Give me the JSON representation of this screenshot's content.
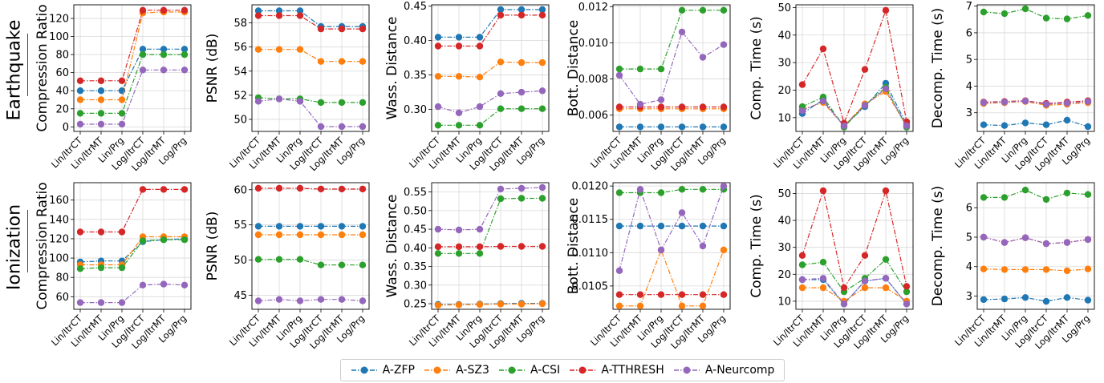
{
  "row_labels": [
    "Earthquake",
    "Ionization"
  ],
  "legend": [
    {
      "name": "A-ZFP",
      "color": "#1f77b4"
    },
    {
      "name": "A-SZ3",
      "color": "#ff7f0e"
    },
    {
      "name": "A-CSI",
      "color": "#2ca02c"
    },
    {
      "name": "A-TTHRESH",
      "color": "#d62728"
    },
    {
      "name": "A-Neurcomp",
      "color": "#9467bd"
    }
  ],
  "chart_data": [
    {
      "type": "line",
      "dataset": "Earthquake",
      "ylabel": "Compression Ratio",
      "categories": [
        "Lin/ItrCT",
        "Lin/ItrMT",
        "Lin/Prg",
        "Log/ItrCT",
        "Log/ItrMT",
        "Log/Prg"
      ],
      "ylim": [
        -5,
        135
      ],
      "yticks": [
        0,
        20,
        40,
        60,
        80,
        100,
        120
      ],
      "tick_decimals": 0,
      "grid": true,
      "series": [
        {
          "name": "A-ZFP",
          "values": [
            40,
            40,
            40,
            86,
            86,
            86
          ]
        },
        {
          "name": "A-SZ3",
          "values": [
            30,
            30,
            30,
            126,
            127,
            127
          ]
        },
        {
          "name": "A-CSI",
          "values": [
            15,
            15,
            15,
            80,
            80,
            80
          ]
        },
        {
          "name": "A-TTHRESH",
          "values": [
            51,
            51,
            51,
            129,
            129,
            129
          ]
        },
        {
          "name": "A-Neurcomp",
          "values": [
            3,
            3,
            3,
            63,
            63,
            63
          ]
        }
      ]
    },
    {
      "type": "line",
      "dataset": "Earthquake",
      "ylabel": "PSNR (dB)",
      "categories": [
        "Lin/ItrCT",
        "Lin/ItrMT",
        "Lin/Prg",
        "Log/ItrCT",
        "Log/ItrMT",
        "Log/Prg"
      ],
      "ylim": [
        49,
        59.5
      ],
      "yticks": [
        50,
        52,
        54,
        56,
        58
      ],
      "tick_decimals": 0,
      "grid": true,
      "series": [
        {
          "name": "A-ZFP",
          "values": [
            59.0,
            59.0,
            59.0,
            57.7,
            57.7,
            57.7
          ]
        },
        {
          "name": "A-SZ3",
          "values": [
            55.8,
            55.8,
            55.8,
            54.8,
            54.8,
            54.8
          ]
        },
        {
          "name": "A-CSI",
          "values": [
            51.8,
            51.7,
            51.7,
            51.4,
            51.4,
            51.4
          ]
        },
        {
          "name": "A-TTHRESH",
          "values": [
            58.6,
            58.6,
            58.6,
            57.5,
            57.5,
            57.5
          ]
        },
        {
          "name": "A-Neurcomp",
          "values": [
            51.5,
            51.7,
            51.5,
            49.4,
            49.4,
            49.4
          ]
        }
      ]
    },
    {
      "type": "line",
      "dataset": "Earthquake",
      "ylabel": "Wass. Distance",
      "categories": [
        "Lin/ItrCT",
        "Lin/ItrMT",
        "Lin/Prg",
        "Log/ItrCT",
        "Log/ItrMT",
        "Log/Prg"
      ],
      "ylim": [
        0.268,
        0.452
      ],
      "yticks": [
        0.3,
        0.35,
        0.4,
        0.45
      ],
      "tick_decimals": 2,
      "grid": true,
      "series": [
        {
          "name": "A-ZFP",
          "values": [
            0.405,
            0.405,
            0.405,
            0.445,
            0.445,
            0.445
          ]
        },
        {
          "name": "A-SZ3",
          "values": [
            0.348,
            0.348,
            0.347,
            0.369,
            0.368,
            0.368
          ]
        },
        {
          "name": "A-CSI",
          "values": [
            0.277,
            0.277,
            0.277,
            0.301,
            0.301,
            0.301
          ]
        },
        {
          "name": "A-TTHRESH",
          "values": [
            0.392,
            0.392,
            0.392,
            0.437,
            0.437,
            0.437
          ]
        },
        {
          "name": "A-Neurcomp",
          "values": [
            0.304,
            0.295,
            0.304,
            0.323,
            0.325,
            0.327
          ]
        }
      ]
    },
    {
      "type": "line",
      "dataset": "Earthquake",
      "ylabel": "Bott. Distance",
      "categories": [
        "Lin/ItrCT",
        "Lin/ItrMT",
        "Lin/Prg",
        "Log/ItrCT",
        "Log/ItrMT",
        "Log/Prg"
      ],
      "ylim": [
        0.0051,
        0.0121
      ],
      "yticks": [
        0.006,
        0.008,
        0.01,
        0.012
      ],
      "tick_decimals": 3,
      "grid": true,
      "series": [
        {
          "name": "A-ZFP",
          "values": [
            0.00535,
            0.00535,
            0.00535,
            0.00535,
            0.00535,
            0.00535
          ]
        },
        {
          "name": "A-SZ3",
          "values": [
            0.00635,
            0.00635,
            0.00635,
            0.00635,
            0.00635,
            0.00635
          ]
        },
        {
          "name": "A-CSI",
          "values": [
            0.00855,
            0.00855,
            0.00855,
            0.0118,
            0.0118,
            0.0118
          ]
        },
        {
          "name": "A-TTHRESH",
          "values": [
            0.00645,
            0.00645,
            0.00645,
            0.00645,
            0.00645,
            0.00645
          ]
        },
        {
          "name": "A-Neurcomp",
          "values": [
            0.0082,
            0.0066,
            0.00685,
            0.0106,
            0.0092,
            0.0099
          ]
        }
      ]
    },
    {
      "type": "line",
      "dataset": "Earthquake",
      "ylabel": "Comp. Time (s)",
      "categories": [
        "Lin/ItrCT",
        "Lin/ItrMT",
        "Lin/Prg",
        "Log/ItrCT",
        "Log/ItrMT",
        "Log/Prg"
      ],
      "ylim": [
        5,
        51
      ],
      "yticks": [
        10,
        20,
        30,
        40,
        50
      ],
      "tick_decimals": 0,
      "grid": true,
      "series": [
        {
          "name": "A-ZFP",
          "values": [
            11.5,
            16.5,
            7.0,
            14.0,
            22.5,
            7.5
          ]
        },
        {
          "name": "A-SZ3",
          "values": [
            13.0,
            15.5,
            7.0,
            15.0,
            19.5,
            7.0
          ]
        },
        {
          "name": "A-CSI",
          "values": [
            14.0,
            17.5,
            6.5,
            14.5,
            21.0,
            6.5
          ]
        },
        {
          "name": "A-TTHRESH",
          "values": [
            22.0,
            35.0,
            8.0,
            27.5,
            49.0,
            8.5
          ]
        },
        {
          "name": "A-Neurcomp",
          "values": [
            12.5,
            16.0,
            7.0,
            14.5,
            20.5,
            7.0
          ]
        }
      ]
    },
    {
      "type": "line",
      "dataset": "Earthquake",
      "ylabel": "Decomp. Time (s)",
      "categories": [
        "Lin/ItrCT",
        "Lin/ItrMT",
        "Lin/Prg",
        "Log/ItrCT",
        "Log/ItrMT",
        "Log/Prg"
      ],
      "ylim": [
        2.3,
        7.05
      ],
      "yticks": [
        3,
        4,
        5,
        6,
        7
      ],
      "tick_decimals": 0,
      "grid": true,
      "series": [
        {
          "name": "A-ZFP",
          "values": [
            2.55,
            2.52,
            2.62,
            2.55,
            2.72,
            2.48
          ]
        },
        {
          "name": "A-SZ3",
          "values": [
            3.35,
            3.38,
            3.42,
            3.28,
            3.32,
            3.38
          ]
        },
        {
          "name": "A-CSI",
          "values": [
            6.78,
            6.72,
            6.9,
            6.55,
            6.52,
            6.65
          ]
        },
        {
          "name": "A-TTHRESH",
          "values": [
            3.4,
            3.42,
            3.45,
            3.35,
            3.4,
            3.45
          ]
        },
        {
          "name": "A-Neurcomp",
          "values": [
            3.38,
            3.4,
            3.44,
            3.32,
            3.36,
            3.42
          ]
        }
      ]
    },
    {
      "type": "line",
      "dataset": "Ionization",
      "ylabel": "Compression Ratio",
      "categories": [
        "Lin/ItrCT",
        "Lin/ItrMT",
        "Lin/Prg",
        "Log/ItrCT",
        "Log/ItrMT",
        "Log/Prg"
      ],
      "ylim": [
        47,
        178
      ],
      "yticks": [
        60,
        80,
        100,
        120,
        140,
        160
      ],
      "tick_decimals": 0,
      "grid": true,
      "series": [
        {
          "name": "A-ZFP",
          "values": [
            96,
            97,
            97,
            117,
            119,
            120
          ]
        },
        {
          "name": "A-SZ3",
          "values": [
            93,
            93,
            93,
            122,
            122,
            122
          ]
        },
        {
          "name": "A-CSI",
          "values": [
            89,
            90,
            90,
            118,
            119,
            119
          ]
        },
        {
          "name": "A-TTHRESH",
          "values": [
            127,
            127,
            127,
            171,
            171,
            171
          ]
        },
        {
          "name": "A-Neurcomp",
          "values": [
            54,
            54,
            54,
            72,
            73,
            72
          ]
        }
      ]
    },
    {
      "type": "line",
      "dataset": "Ionization",
      "ylabel": "PSNR (dB)",
      "categories": [
        "Lin/ItrCT",
        "Lin/ItrMT",
        "Lin/Prg",
        "Log/ItrCT",
        "Log/ItrMT",
        "Log/Prg"
      ],
      "ylim": [
        43,
        61
      ],
      "yticks": [
        45,
        50,
        55,
        60
      ],
      "tick_decimals": 0,
      "grid": true,
      "series": [
        {
          "name": "A-ZFP",
          "values": [
            54.8,
            54.8,
            54.8,
            54.8,
            54.8,
            54.8
          ]
        },
        {
          "name": "A-SZ3",
          "values": [
            53.6,
            53.6,
            53.6,
            53.6,
            53.6,
            53.6
          ]
        },
        {
          "name": "A-CSI",
          "values": [
            50.1,
            50.1,
            50.1,
            49.3,
            49.3,
            49.3
          ]
        },
        {
          "name": "A-TTHRESH",
          "values": [
            60.2,
            60.2,
            60.2,
            60.1,
            60.1,
            60.1
          ]
        },
        {
          "name": "A-Neurcomp",
          "values": [
            44.2,
            44.4,
            44.2,
            44.4,
            44.4,
            44.2
          ]
        }
      ]
    },
    {
      "type": "line",
      "dataset": "Ionization",
      "ylabel": "Wass. Distance",
      "categories": [
        "Lin/ItrCT",
        "Lin/ItrMT",
        "Lin/Prg",
        "Log/ItrCT",
        "Log/ItrMT",
        "Log/Prg"
      ],
      "ylim": [
        0.235,
        0.575
      ],
      "yticks": [
        0.25,
        0.3,
        0.35,
        0.4,
        0.45,
        0.5,
        0.55
      ],
      "tick_decimals": 2,
      "grid": true,
      "series": [
        {
          "name": "A-ZFP",
          "values": [
            0.248,
            0.248,
            0.249,
            0.25,
            0.251,
            0.251
          ]
        },
        {
          "name": "A-SZ3",
          "values": [
            0.246,
            0.247,
            0.248,
            0.249,
            0.249,
            0.25
          ]
        },
        {
          "name": "A-CSI",
          "values": [
            0.385,
            0.385,
            0.385,
            0.532,
            0.533,
            0.533
          ]
        },
        {
          "name": "A-TTHRESH",
          "values": [
            0.403,
            0.403,
            0.403,
            0.404,
            0.404,
            0.404
          ]
        },
        {
          "name": "A-Neurcomp",
          "values": [
            0.45,
            0.448,
            0.45,
            0.558,
            0.56,
            0.562
          ]
        }
      ]
    },
    {
      "type": "line",
      "dataset": "Ionization",
      "ylabel": "Bott. Distance",
      "categories": [
        "Lin/ItrCT",
        "Lin/ItrMT",
        "Lin/Prg",
        "Log/ItrCT",
        "Log/ItrMT",
        "Log/Prg"
      ],
      "ylim": [
        0.01015,
        0.01205
      ],
      "yticks": [
        0.0105,
        0.011,
        0.0115,
        0.012
      ],
      "tick_decimals": 4,
      "grid": true,
      "series": [
        {
          "name": "A-ZFP",
          "values": [
            0.0114,
            0.0114,
            0.0114,
            0.0114,
            0.0114,
            0.0114
          ]
        },
        {
          "name": "A-SZ3",
          "values": [
            0.0102,
            0.0102,
            0.01104,
            0.0102,
            0.0102,
            0.01104
          ]
        },
        {
          "name": "A-CSI",
          "values": [
            0.0119,
            0.0119,
            0.0119,
            0.01195,
            0.01195,
            0.01195
          ]
        },
        {
          "name": "A-TTHRESH",
          "values": [
            0.01037,
            0.01037,
            0.01037,
            0.01037,
            0.01037,
            0.01037
          ]
        },
        {
          "name": "A-Neurcomp",
          "values": [
            0.01073,
            0.01195,
            0.01104,
            0.0116,
            0.0111,
            0.012
          ]
        }
      ]
    },
    {
      "type": "line",
      "dataset": "Ionization",
      "ylabel": "Comp. Time (s)",
      "categories": [
        "Lin/ItrCT",
        "Lin/ItrMT",
        "Lin/Prg",
        "Log/ItrCT",
        "Log/ItrMT",
        "Log/Prg"
      ],
      "ylim": [
        7,
        54
      ],
      "yticks": [
        10,
        20,
        30,
        40,
        50
      ],
      "tick_decimals": 0,
      "grid": true,
      "series": [
        {
          "name": "A-ZFP",
          "values": [
            18,
            18,
            9,
            17.5,
            18.5,
            9
          ]
        },
        {
          "name": "A-SZ3",
          "values": [
            15,
            15,
            10,
            15,
            15,
            10
          ]
        },
        {
          "name": "A-CSI",
          "values": [
            23.5,
            24.5,
            13.5,
            18.5,
            25.5,
            13.5
          ]
        },
        {
          "name": "A-TTHRESH",
          "values": [
            27,
            51,
            15,
            27,
            51,
            15.5
          ]
        },
        {
          "name": "A-Neurcomp",
          "values": [
            18,
            18.5,
            9,
            17.5,
            18.5,
            9
          ]
        }
      ]
    },
    {
      "type": "line",
      "dataset": "Ionization",
      "ylabel": "Decomp. Time (s)",
      "categories": [
        "Lin/ItrCT",
        "Lin/ItrMT",
        "Lin/Prg",
        "Log/ItrCT",
        "Log/ItrMT",
        "Log/Prg"
      ],
      "ylim": [
        2.55,
        6.85
      ],
      "yticks": [
        3,
        4,
        5,
        6
      ],
      "tick_decimals": 0,
      "grid": true,
      "series": [
        {
          "name": "A-ZFP",
          "values": [
            2.88,
            2.9,
            2.95,
            2.82,
            2.95,
            2.86
          ]
        },
        {
          "name": "A-SZ3",
          "values": [
            3.92,
            3.9,
            3.9,
            3.9,
            3.86,
            3.92
          ]
        },
        {
          "name": "A-CSI",
          "values": [
            6.35,
            6.35,
            6.6,
            6.28,
            6.5,
            6.45
          ]
        },
        {
          "name": "A-TTHRESH",
          "values": [
            5.0,
            4.82,
            4.98,
            4.78,
            4.82,
            4.92
          ]
        },
        {
          "name": "A-Neurcomp",
          "values": [
            5.0,
            4.82,
            4.98,
            4.78,
            4.82,
            4.92
          ]
        }
      ]
    }
  ]
}
